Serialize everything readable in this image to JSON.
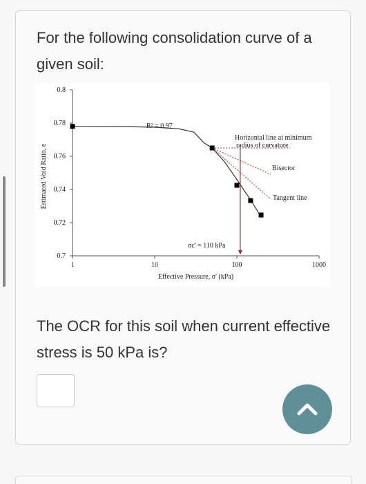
{
  "question": {
    "prompt": "For the following consolidation curve of a given soil:",
    "ask": "The OCR for this soil when current effective stress is 50 kPa is?"
  },
  "chart_data": {
    "type": "scatter",
    "x_label": "Effective Pressure, σ' (kPa)",
    "y_label": "Estimated Void Ratio, e",
    "xlog": true,
    "xlim": [
      1,
      1000
    ],
    "xticks": [
      1,
      10,
      100,
      1000
    ],
    "ylim": [
      0.7,
      0.8
    ],
    "yticks": [
      0.7,
      0.72,
      0.74,
      0.76,
      0.78,
      0.8
    ],
    "x": [
      1,
      50,
      100,
      147,
      197
    ],
    "values": [
      0.778,
      0.765,
      0.7425,
      0.7333,
      0.7246
    ],
    "color": "#000000",
    "fit": {
      "x": [
        1,
        5,
        10,
        20,
        30,
        40,
        50,
        70,
        100,
        150,
        200
      ],
      "values": [
        0.778,
        0.7778,
        0.7775,
        0.7765,
        0.7745,
        0.768,
        0.765,
        0.757,
        0.746,
        0.733,
        0.723
      ],
      "color": "#333333"
    },
    "annotations": {
      "r2": "R² = 0.97",
      "horizontal": [
        "Horizontal line at minimum",
        "radius of curvature"
      ],
      "bisector": "Bisector",
      "tangent": "Tangent line"
    },
    "preconsolidation": {
      "x": 110,
      "label": "σc' = 110 kPa",
      "color": "#8b2b2b"
    }
  }
}
